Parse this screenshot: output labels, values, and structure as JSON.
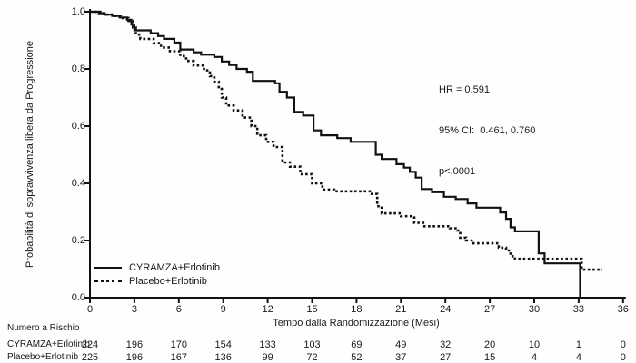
{
  "figure": {
    "background": "#fefefe",
    "text_color": "#1a1a1a",
    "curve_color": "#111111"
  },
  "chart_data": {
    "type": "line",
    "subtype": "kaplan-meier-step",
    "title": "",
    "xlabel": "Tempo dalla Randomizzazione (Mesi)",
    "ylabel": "Probabilità di sopravvivenza libera da Progressione",
    "xlim": [
      0,
      36
    ],
    "ylim": [
      0.0,
      1.0
    ],
    "x_ticks": [
      0,
      3,
      6,
      9,
      12,
      15,
      18,
      21,
      24,
      27,
      30,
      33,
      36
    ],
    "y_ticks": [
      1.0,
      0.8,
      0.6,
      0.4,
      0.2,
      0.0
    ],
    "grid": false,
    "legend_position": "lower-left",
    "annotations": [
      "HR = 0.591",
      "95% CI:  0.461, 0.760",
      "p<.0001"
    ],
    "series": [
      {
        "name": "CYRAMZA+Erlotinib",
        "style": "solid",
        "color": "#111111",
        "points": [
          [
            0,
            1.0
          ],
          [
            0.6,
            0.995
          ],
          [
            1.0,
            0.99
          ],
          [
            1.5,
            0.985
          ],
          [
            2.0,
            0.98
          ],
          [
            2.5,
            0.972
          ],
          [
            2.8,
            0.955
          ],
          [
            3.0,
            0.935
          ],
          [
            4.1,
            0.925
          ],
          [
            4.6,
            0.915
          ],
          [
            5.0,
            0.905
          ],
          [
            5.7,
            0.892
          ],
          [
            6.1,
            0.868
          ],
          [
            7.0,
            0.858
          ],
          [
            7.5,
            0.85
          ],
          [
            8.4,
            0.842
          ],
          [
            8.9,
            0.826
          ],
          [
            9.4,
            0.814
          ],
          [
            9.9,
            0.8
          ],
          [
            10.6,
            0.79
          ],
          [
            11.0,
            0.758
          ],
          [
            12.5,
            0.75
          ],
          [
            12.8,
            0.72
          ],
          [
            13.3,
            0.7
          ],
          [
            13.8,
            0.65
          ],
          [
            14.4,
            0.637
          ],
          [
            15.1,
            0.585
          ],
          [
            15.6,
            0.568
          ],
          [
            16.7,
            0.558
          ],
          [
            17.6,
            0.545
          ],
          [
            19.3,
            0.5
          ],
          [
            19.7,
            0.485
          ],
          [
            20.7,
            0.467
          ],
          [
            21.2,
            0.455
          ],
          [
            21.6,
            0.44
          ],
          [
            22.0,
            0.42
          ],
          [
            22.4,
            0.38
          ],
          [
            23.1,
            0.369
          ],
          [
            23.9,
            0.353
          ],
          [
            24.7,
            0.345
          ],
          [
            25.5,
            0.33
          ],
          [
            26.1,
            0.315
          ],
          [
            27.7,
            0.298
          ],
          [
            28.1,
            0.276
          ],
          [
            28.4,
            0.246
          ],
          [
            28.7,
            0.232
          ],
          [
            30.3,
            0.155
          ],
          [
            30.7,
            0.12
          ],
          [
            33.1,
            0.12
          ],
          [
            33.1,
            0.0
          ]
        ]
      },
      {
        "name": "Placebo+Erlotinib",
        "style": "dotted",
        "color": "#111111",
        "points": [
          [
            0,
            1.0
          ],
          [
            0.7,
            0.995
          ],
          [
            1.1,
            0.99
          ],
          [
            1.6,
            0.985
          ],
          [
            2.1,
            0.978
          ],
          [
            2.6,
            0.968
          ],
          [
            2.9,
            0.945
          ],
          [
            3.1,
            0.92
          ],
          [
            3.4,
            0.905
          ],
          [
            4.3,
            0.89
          ],
          [
            4.8,
            0.875
          ],
          [
            5.4,
            0.862
          ],
          [
            6.1,
            0.845
          ],
          [
            6.5,
            0.828
          ],
          [
            7.0,
            0.812
          ],
          [
            7.7,
            0.795
          ],
          [
            8.1,
            0.775
          ],
          [
            8.4,
            0.755
          ],
          [
            8.7,
            0.73
          ],
          [
            8.9,
            0.7
          ],
          [
            9.2,
            0.672
          ],
          [
            9.7,
            0.655
          ],
          [
            10.3,
            0.63
          ],
          [
            10.9,
            0.6
          ],
          [
            11.3,
            0.568
          ],
          [
            11.9,
            0.545
          ],
          [
            12.4,
            0.527
          ],
          [
            13.0,
            0.473
          ],
          [
            13.5,
            0.458
          ],
          [
            14.2,
            0.432
          ],
          [
            15.0,
            0.4
          ],
          [
            15.7,
            0.378
          ],
          [
            16.5,
            0.372
          ],
          [
            18.9,
            0.363
          ],
          [
            19.4,
            0.32
          ],
          [
            19.7,
            0.295
          ],
          [
            21.0,
            0.285
          ],
          [
            21.9,
            0.262
          ],
          [
            22.5,
            0.25
          ],
          [
            24.3,
            0.243
          ],
          [
            24.8,
            0.235
          ],
          [
            25.0,
            0.21
          ],
          [
            25.4,
            0.2
          ],
          [
            25.9,
            0.19
          ],
          [
            27.6,
            0.175
          ],
          [
            28.1,
            0.165
          ],
          [
            28.4,
            0.145
          ],
          [
            28.7,
            0.136
          ],
          [
            33.2,
            0.098
          ],
          [
            34.6,
            0.098
          ]
        ]
      }
    ]
  },
  "risk_table": {
    "title": "Numero a Rischio",
    "time_points": [
      0,
      3,
      6,
      9,
      12,
      15,
      18,
      21,
      24,
      27,
      30,
      33,
      36
    ],
    "rows": [
      {
        "label": "CYRAMZA+Erlotinib",
        "values": [
          224,
          196,
          170,
          154,
          133,
          103,
          69,
          49,
          32,
          20,
          10,
          1,
          0
        ]
      },
      {
        "label": "Placebo+Erlotinib",
        "values": [
          225,
          196,
          167,
          136,
          99,
          72,
          52,
          37,
          27,
          15,
          4,
          4,
          0
        ]
      }
    ]
  }
}
